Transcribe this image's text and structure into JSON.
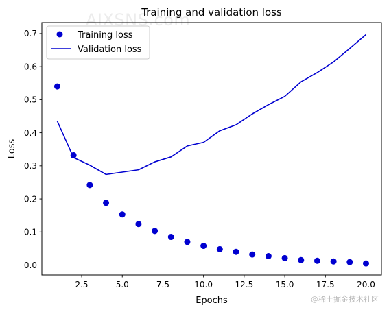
{
  "chart_data": {
    "type": "line",
    "title": "Training and validation loss",
    "xlabel": "Epochs",
    "ylabel": "Loss",
    "xlim": [
      0.05,
      20.95
    ],
    "ylim": [
      -0.03,
      0.733
    ],
    "xticks": [
      2.5,
      5.0,
      7.5,
      10.0,
      12.5,
      15.0,
      17.5,
      20.0
    ],
    "yticks": [
      0.0,
      0.1,
      0.2,
      0.3,
      0.4,
      0.5,
      0.6,
      0.7
    ],
    "xtick_labels": [
      "2.5",
      "5.0",
      "7.5",
      "10.0",
      "12.5",
      "15.0",
      "17.5",
      "20.0"
    ],
    "ytick_labels": [
      "0.0",
      "0.1",
      "0.2",
      "0.3",
      "0.4",
      "0.5",
      "0.6",
      "0.7"
    ],
    "grid": false,
    "legend": "top-left",
    "series": [
      {
        "name": "Training loss",
        "style": "markers",
        "color": "#0000d0",
        "x": [
          1,
          2,
          3,
          4,
          5,
          6,
          7,
          8,
          9,
          10,
          11,
          12,
          13,
          14,
          15,
          16,
          17,
          18,
          19,
          20
        ],
        "values": [
          0.54,
          0.332,
          0.242,
          0.188,
          0.153,
          0.124,
          0.103,
          0.085,
          0.07,
          0.058,
          0.048,
          0.04,
          0.032,
          0.027,
          0.021,
          0.015,
          0.013,
          0.011,
          0.009,
          0.005
        ]
      },
      {
        "name": "Validation loss",
        "style": "line",
        "color": "#0000d0",
        "x": [
          1,
          2,
          3,
          4,
          5,
          6,
          7,
          8,
          9,
          10,
          11,
          12,
          13,
          14,
          15,
          16,
          17,
          18,
          19,
          20
        ],
        "values": [
          0.435,
          0.325,
          0.302,
          0.274,
          0.281,
          0.288,
          0.312,
          0.327,
          0.36,
          0.371,
          0.406,
          0.424,
          0.457,
          0.485,
          0.51,
          0.554,
          0.582,
          0.614,
          0.655,
          0.697
        ]
      }
    ]
  },
  "watermarks": {
    "top": "AIXSNS.com",
    "bottom": "@稀土掘金技术社区"
  }
}
